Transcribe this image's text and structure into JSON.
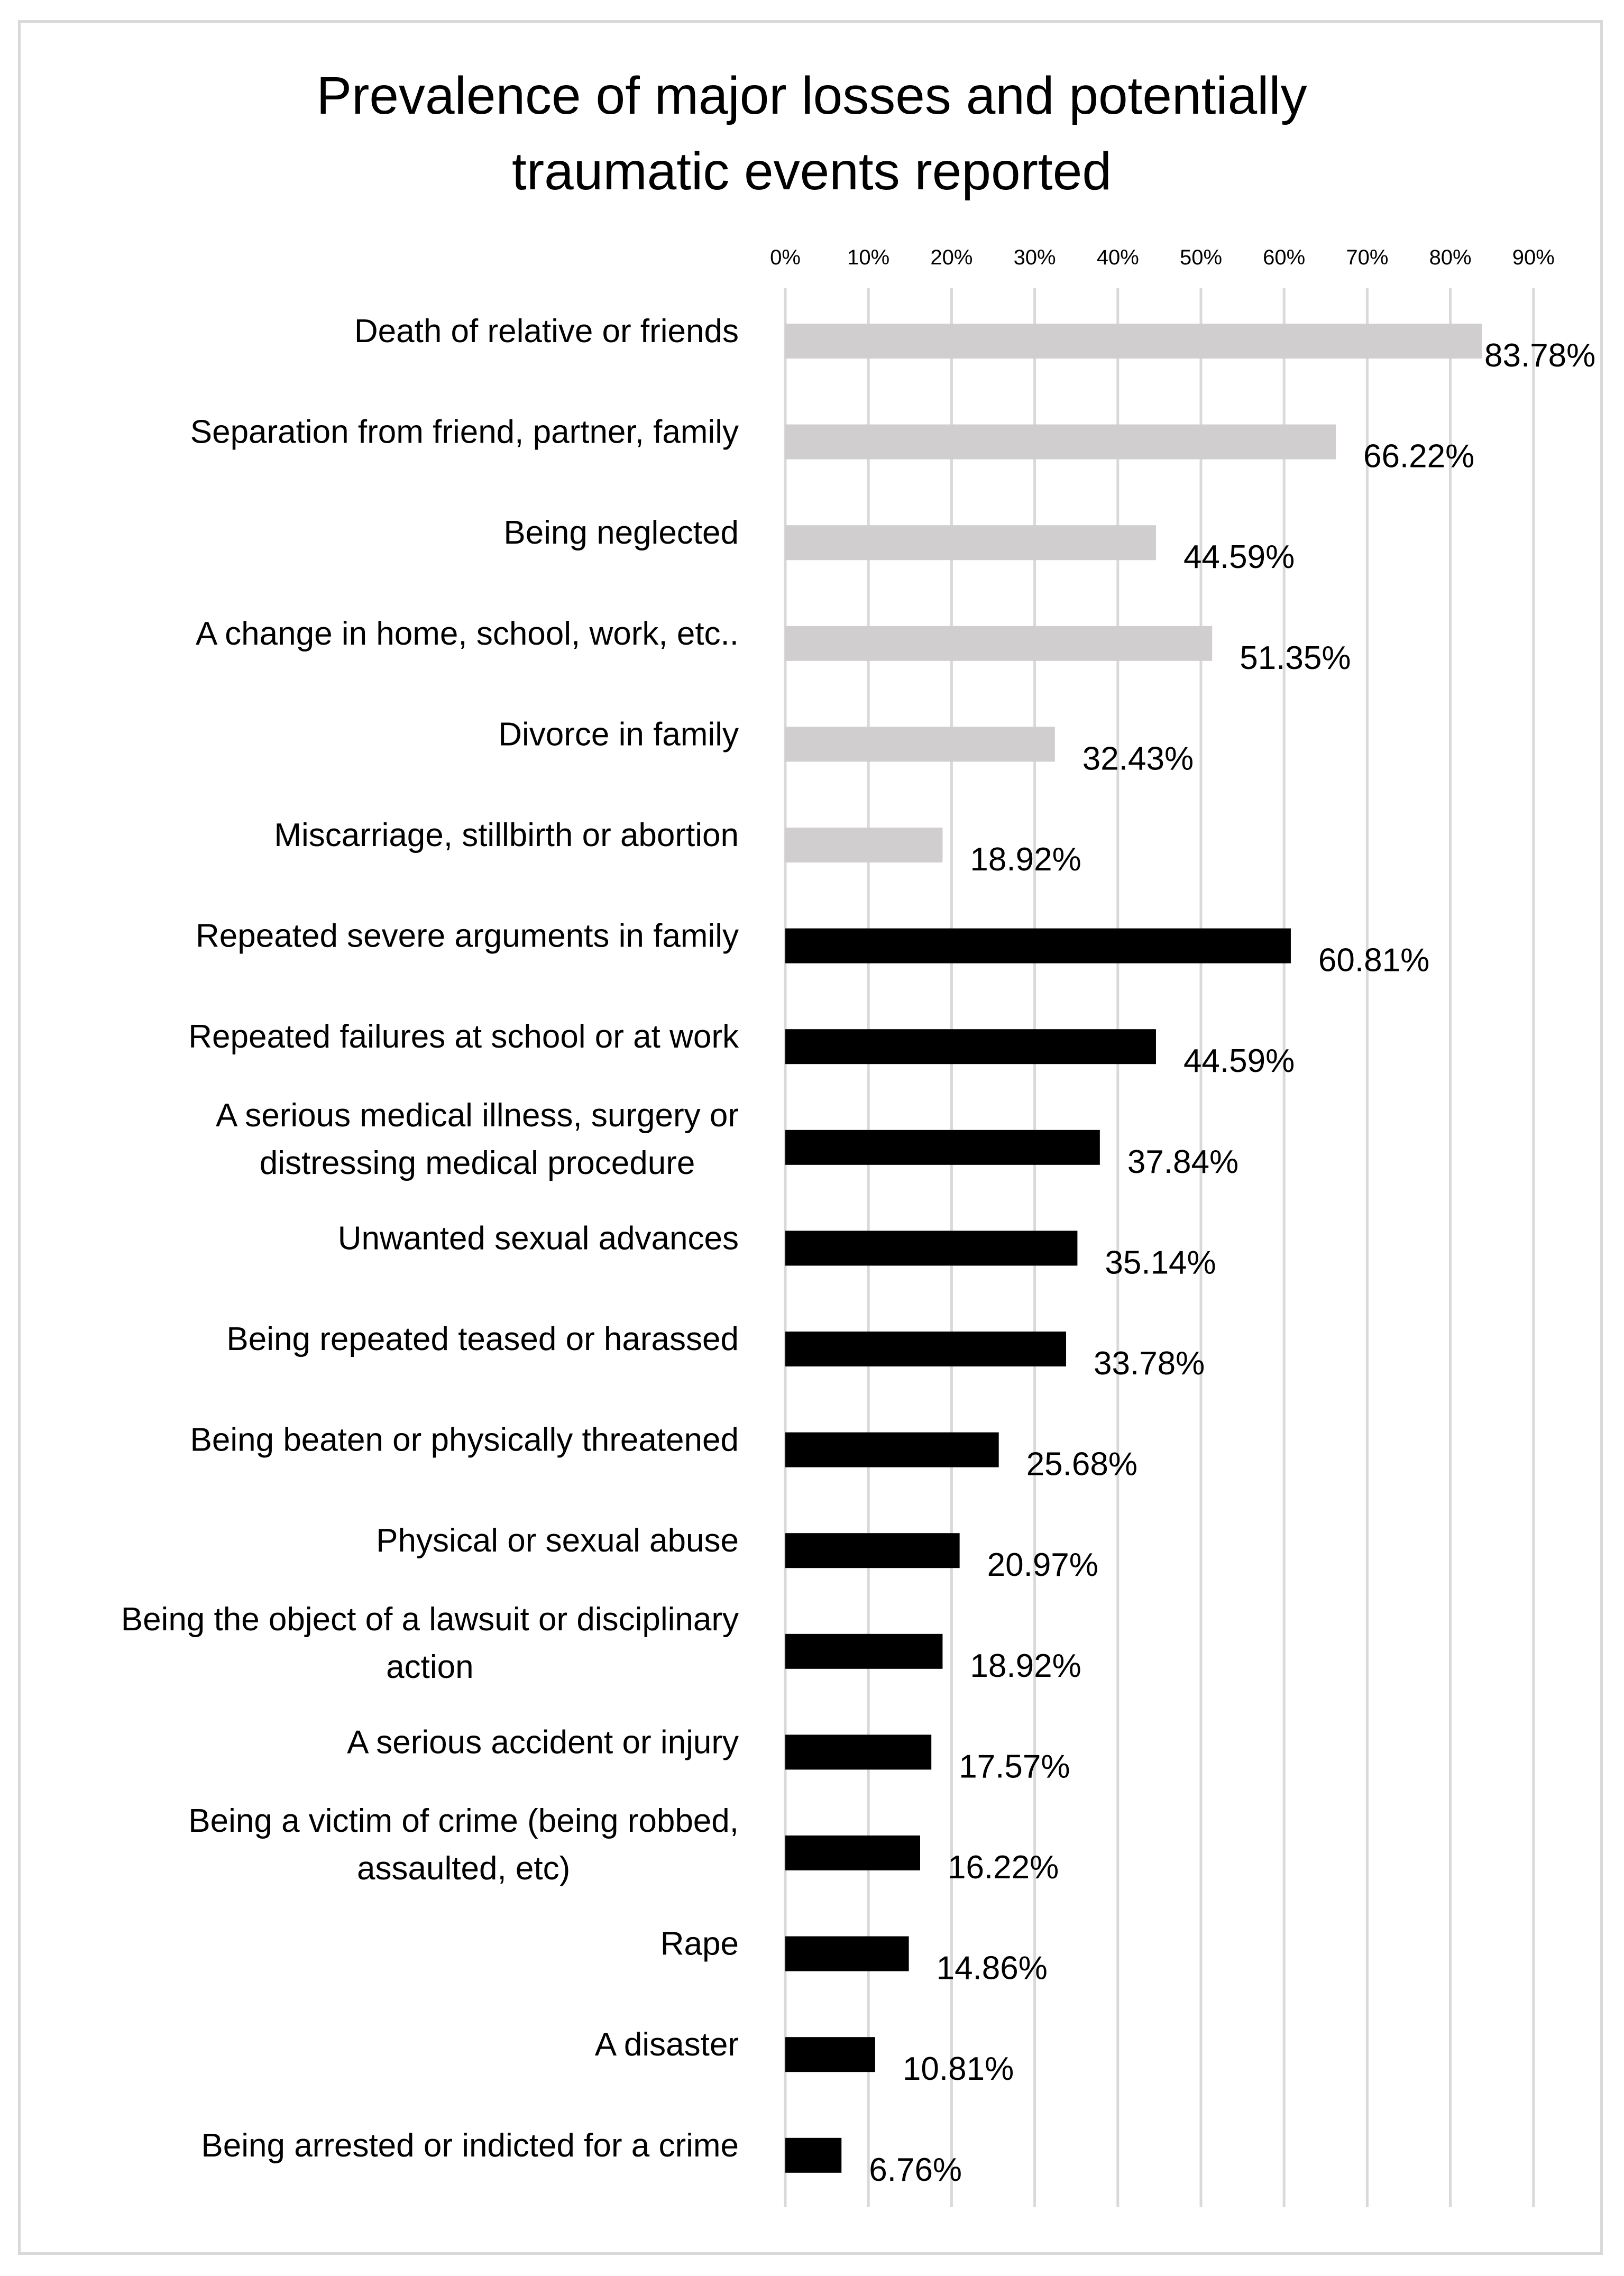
{
  "chart_data": {
    "type": "bar",
    "orientation": "horizontal",
    "title": "Prevalence of major losses and potentially traumatic events reported",
    "title_lines": [
      "Prevalence of major losses and potentially",
      "traumatic events reported"
    ],
    "xlabel": "",
    "ylabel": "",
    "xlim": [
      0,
      90
    ],
    "x_axis_position": "top",
    "grid": true,
    "legend": "none",
    "ticks": [
      "0%",
      "10%",
      "20%",
      "30%",
      "40%",
      "50%",
      "60%",
      "70%",
      "80%",
      "90%"
    ],
    "tick_values": [
      0,
      10,
      20,
      30,
      40,
      50,
      60,
      70,
      80,
      90
    ],
    "colors": {
      "major_loss": "#d0cece",
      "traumatic_event": "#000000",
      "grid": "#d9d9d9",
      "frame": "#d9d9d9"
    },
    "categories": [
      "Death of relative or friends",
      "Separation from friend, partner, family",
      "Being neglected",
      "A change in home, school, work, etc..",
      "Divorce in family",
      "Miscarriage, stillbirth or abortion",
      "Repeated severe arguments in family",
      "Repeated failures at school or at work",
      "A serious medical illness, surgery or distressing medical procedure",
      "Unwanted sexual advances",
      "Being repeated teased or harassed",
      "Being beaten or physically threatened",
      "Physical or sexual abuse",
      "Being the object of a lawsuit or disciplinary action",
      "A serious accident or injury",
      "Being a victim of crime (being robbed, assaulted, etc)",
      "Rape",
      "A disaster",
      "Being arrested or indicted for a crime"
    ],
    "category_lines": [
      [
        "Death of relative or friends"
      ],
      [
        "Separation from friend, partner, family"
      ],
      [
        "Being neglected"
      ],
      [
        "A change in home, school, work, etc.."
      ],
      [
        "Divorce in family"
      ],
      [
        "Miscarriage, stillbirth or abortion"
      ],
      [
        "Repeated severe arguments in family"
      ],
      [
        "Repeated failures at school or at work"
      ],
      [
        "A serious medical illness, surgery or",
        "distressing medical procedure"
      ],
      [
        "Unwanted sexual advances"
      ],
      [
        "Being repeated teased or harassed"
      ],
      [
        "Being beaten or physically threatened"
      ],
      [
        "Physical or sexual abuse"
      ],
      [
        "Being the object of a lawsuit or disciplinary",
        "action"
      ],
      [
        "A serious accident or injury"
      ],
      [
        "Being a victim of crime (being robbed,",
        "assaulted, etc)"
      ],
      [
        "Rape"
      ],
      [
        "A disaster"
      ],
      [
        "Being arrested or indicted for a crime"
      ]
    ],
    "values": [
      83.78,
      66.22,
      44.59,
      51.35,
      32.43,
      18.92,
      60.81,
      44.59,
      37.84,
      35.14,
      33.78,
      25.68,
      20.97,
      18.92,
      17.57,
      16.22,
      14.86,
      10.81,
      6.76
    ],
    "value_labels": [
      "83.78%",
      "66.22%",
      "44.59%",
      "51.35%",
      "32.43%",
      "18.92%",
      "60.81%",
      "44.59%",
      "37.84%",
      "35.14%",
      "33.78%",
      "25.68%",
      "20.97%",
      "18.92%",
      "17.57%",
      "16.22%",
      "14.86%",
      "10.81%",
      "6.76%"
    ],
    "groups": [
      "major_loss",
      "major_loss",
      "major_loss",
      "major_loss",
      "major_loss",
      "major_loss",
      "traumatic_event",
      "traumatic_event",
      "traumatic_event",
      "traumatic_event",
      "traumatic_event",
      "traumatic_event",
      "traumatic_event",
      "traumatic_event",
      "traumatic_event",
      "traumatic_event",
      "traumatic_event",
      "traumatic_event",
      "traumatic_event"
    ]
  }
}
